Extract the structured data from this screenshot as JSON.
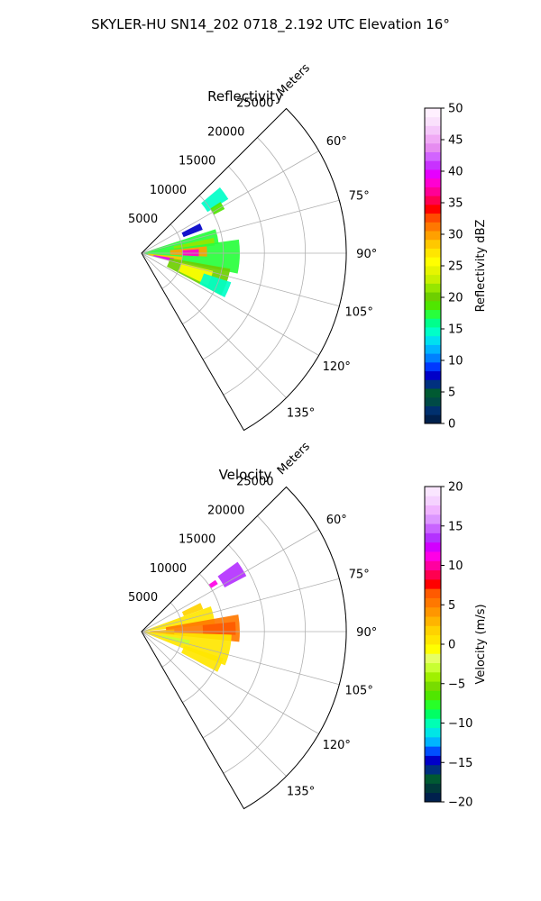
{
  "figure": {
    "title": "SKYLER-HU  SN14_202  0718_2.192 UTC Elevation 16°"
  },
  "chart_data": [
    {
      "type": "heatmap",
      "projection": "polar-sector",
      "title": "Reflectivity",
      "radial_label": "Meters",
      "r_ticks": [
        5000,
        10000,
        15000,
        20000,
        25000
      ],
      "r_tick_labels": [
        "5000",
        "10000",
        "15000",
        "20000",
        "25000"
      ],
      "rlim": [
        0,
        25000
      ],
      "azimuth_range_deg": [
        45,
        150
      ],
      "theta_ticks_deg": [
        60,
        75,
        90,
        105,
        120,
        135
      ],
      "theta_tick_labels": [
        "60°",
        "75°",
        "90°",
        "105°",
        "120°",
        "135°"
      ],
      "grid": true,
      "colorbar": {
        "label": "Reflectivity dBZ",
        "min": 0,
        "max": 50,
        "ticks": [
          0,
          5,
          10,
          15,
          20,
          25,
          30,
          35,
          40,
          45,
          50
        ],
        "tick_labels": [
          "0",
          "5",
          "10",
          "15",
          "20",
          "25",
          "30",
          "35",
          "40",
          "45",
          "50"
        ],
        "colors": [
          "#00204d",
          "#00306e",
          "#004a46",
          "#005a32",
          "#00307f",
          "#0000c8",
          "#0038ff",
          "#0080ff",
          "#00b4ff",
          "#00e0f0",
          "#00ffc8",
          "#00ff8c",
          "#28ff3c",
          "#50e600",
          "#6ecf00",
          "#96e600",
          "#c8f000",
          "#e6f500",
          "#ffff00",
          "#ffe600",
          "#ffc800",
          "#ffa000",
          "#ff7800",
          "#ff4b00",
          "#ff0000",
          "#ff0050",
          "#ff0096",
          "#ff00d2",
          "#e600ff",
          "#c832ff",
          "#d264ff",
          "#e68cf0",
          "#f0aaf5",
          "#f5c8fa",
          "#fae1fc",
          "#fff0ff"
        ]
      },
      "regions": [
        {
          "az": [
            50,
            58
          ],
          "r": [
            9500,
            12500
          ],
          "value": 14
        },
        {
          "az": [
            57,
            62
          ],
          "r": [
            10000,
            11500
          ],
          "value": 19
        },
        {
          "az": [
            63,
            69
          ],
          "r": [
            5500,
            8000
          ],
          "value": 8
        },
        {
          "az": [
            72,
            83
          ],
          "r": [
            300,
            9500
          ],
          "value": 17
        },
        {
          "az": [
            78,
            84
          ],
          "r": [
            4000,
            9000
          ],
          "value": 22
        },
        {
          "az": [
            82,
            102
          ],
          "r": [
            300,
            12000
          ],
          "value": 18
        },
        {
          "az": [
            84,
            93
          ],
          "r": [
            3500,
            8000
          ],
          "value": 30
        },
        {
          "az": [
            86,
            93
          ],
          "r": [
            5000,
            7000
          ],
          "value": 38
        },
        {
          "az": [
            95,
            105
          ],
          "r": [
            800,
            5000
          ],
          "value": 28
        },
        {
          "az": [
            99,
            105
          ],
          "r": [
            1500,
            4000
          ],
          "value": 40
        },
        {
          "az": [
            100,
            118
          ],
          "r": [
            3500,
            11000
          ],
          "value": 20
        },
        {
          "az": [
            104,
            116
          ],
          "r": [
            5000,
            9000
          ],
          "value": 25
        },
        {
          "az": [
            108,
            118
          ],
          "r": [
            8000,
            11500
          ],
          "value": 14
        }
      ]
    },
    {
      "type": "heatmap",
      "projection": "polar-sector",
      "title": "Velocity",
      "radial_label": "Meters",
      "r_ticks": [
        5000,
        10000,
        15000,
        20000,
        25000
      ],
      "r_tick_labels": [
        "5000",
        "10000",
        "15000",
        "20000",
        "25000"
      ],
      "rlim": [
        0,
        25000
      ],
      "azimuth_range_deg": [
        45,
        150
      ],
      "theta_ticks_deg": [
        60,
        75,
        90,
        105,
        120,
        135
      ],
      "theta_tick_labels": [
        "60°",
        "75°",
        "90°",
        "105°",
        "120°",
        "135°"
      ],
      "grid": true,
      "colorbar": {
        "label": "Velocity (m/s)",
        "min": -20,
        "max": 20,
        "ticks": [
          -20,
          -15,
          -10,
          -5,
          0,
          5,
          10,
          15,
          20
        ],
        "tick_labels": [
          "−20",
          "−15",
          "−10",
          "−5",
          "0",
          "5",
          "10",
          "15",
          "20"
        ],
        "colors": [
          "#00204d",
          "#003a3a",
          "#005a32",
          "#00307f",
          "#0000c8",
          "#0050ff",
          "#00b4ff",
          "#00e6e6",
          "#00ffb4",
          "#00ff64",
          "#28ff28",
          "#50e600",
          "#78dc00",
          "#a0f000",
          "#c8ff32",
          "#e6ff64",
          "#ffff00",
          "#ffe600",
          "#ffd200",
          "#ffb400",
          "#ff9600",
          "#ff7800",
          "#ff5a00",
          "#ff0000",
          "#ff0050",
          "#ff00a0",
          "#ff00e6",
          "#d200ff",
          "#b432ff",
          "#c864ff",
          "#dc96ff",
          "#f0b4ff",
          "#f5d2ff",
          "#fae6ff"
        ]
      },
      "regions": [
        {
          "az": [
            54,
            62
          ],
          "r": [
            11500,
            14500
          ],
          "value": 14
        },
        {
          "az": [
            55,
            58
          ],
          "r": [
            10000,
            11000
          ],
          "value": 11
        },
        {
          "az": [
            64,
            70
          ],
          "r": [
            5500,
            8000
          ],
          "value": 2
        },
        {
          "az": [
            70,
            84
          ],
          "r": [
            300,
            9000
          ],
          "value": 1
        },
        {
          "az": [
            80,
            96
          ],
          "r": [
            3000,
            12000
          ],
          "value": 5
        },
        {
          "az": [
            84,
            92
          ],
          "r": [
            7500,
            11500
          ],
          "value": 7
        },
        {
          "az": [
            92,
            112
          ],
          "r": [
            300,
            11000
          ],
          "value": 0
        },
        {
          "az": [
            100,
            106
          ],
          "r": [
            2500,
            6000
          ],
          "value": -3
        },
        {
          "az": [
            108,
            118
          ],
          "r": [
            5500,
            10500
          ],
          "value": 1
        },
        {
          "az": [
            86,
            95
          ],
          "r": [
            1000,
            4000
          ],
          "value": 3
        }
      ]
    }
  ]
}
